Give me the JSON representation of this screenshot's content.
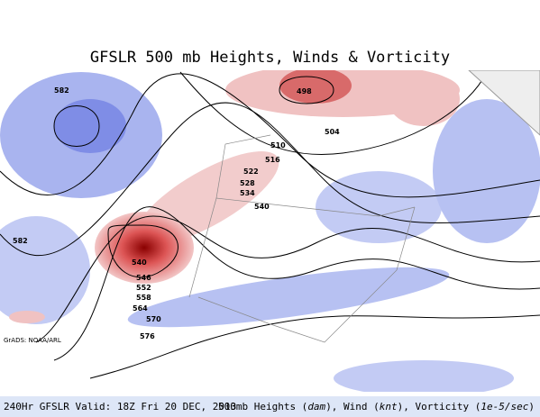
{
  "header": {
    "title": "GFSLR 500 mb Heights, Winds & Vorticity"
  },
  "map": {
    "credit": "GrADS: NOAA/ARL",
    "contour_labels": [
      "582",
      "498",
      "504",
      "510",
      "516",
      "522",
      "528",
      "534",
      "540",
      "582",
      "540",
      "546",
      "552",
      "558",
      "564",
      "570",
      "576"
    ]
  },
  "footer": {
    "left": "240Hr GFSLR Valid: 18Z Fri 20 DEC, 2013",
    "right": [
      "500mb Heights (",
      "dam",
      "), Wind (",
      "knt",
      "), Vorticity (",
      "1e-5/sec",
      ")"
    ]
  }
}
